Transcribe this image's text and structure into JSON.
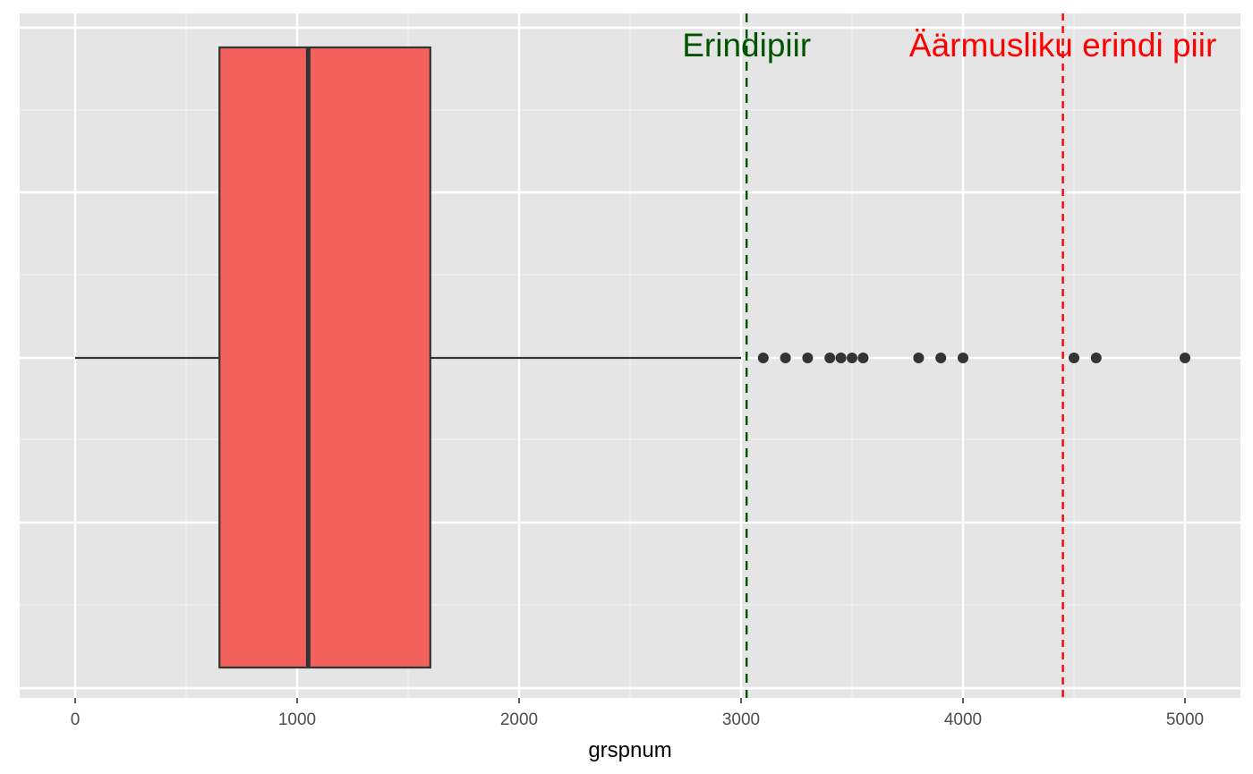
{
  "chart_data": {
    "type": "boxplot",
    "orientation": "horizontal",
    "xlabel": "grspnum",
    "ylabel": "",
    "xlim": [
      -125,
      5125
    ],
    "x_ticks": [
      0,
      1000,
      2000,
      3000,
      4000,
      5000
    ],
    "x_tick_labels": [
      "0",
      "1000",
      "2000",
      "3000",
      "4000",
      "5000"
    ],
    "grid": true,
    "box": {
      "whisker_low": 0,
      "q1": 650,
      "median": 1050,
      "q3": 1600,
      "whisker_high": 3000,
      "fill": "#F2615B"
    },
    "outliers": [
      3100,
      3200,
      3300,
      3400,
      3450,
      3500,
      3550,
      3800,
      3900,
      4000,
      4500,
      4600,
      5000
    ],
    "reference_lines": [
      {
        "label": "Erindipiir",
        "value": 3025,
        "color": "#005400",
        "dash": "10,8"
      },
      {
        "label": "Äärmusliku erindi piir",
        "value": 4450,
        "color": "#FF0000",
        "dash": "8,6"
      }
    ]
  }
}
